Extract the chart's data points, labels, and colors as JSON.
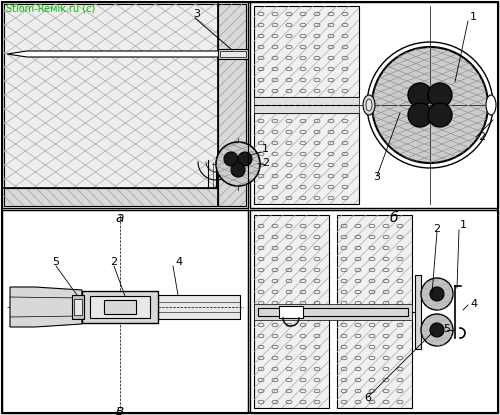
{
  "bg_color": "#ffffff",
  "line_color": "#000000",
  "dark_fill": "#1a1a1a",
  "gray_fill": "#c0c0c0",
  "light_gray": "#e8e8e8",
  "wall_gray": "#d8d8d8",
  "title_color": "#00bb00",
  "title_text": "Stiom-Reмik.ru (c)",
  "label_a": "a",
  "label_b": "б",
  "label_v": "в"
}
